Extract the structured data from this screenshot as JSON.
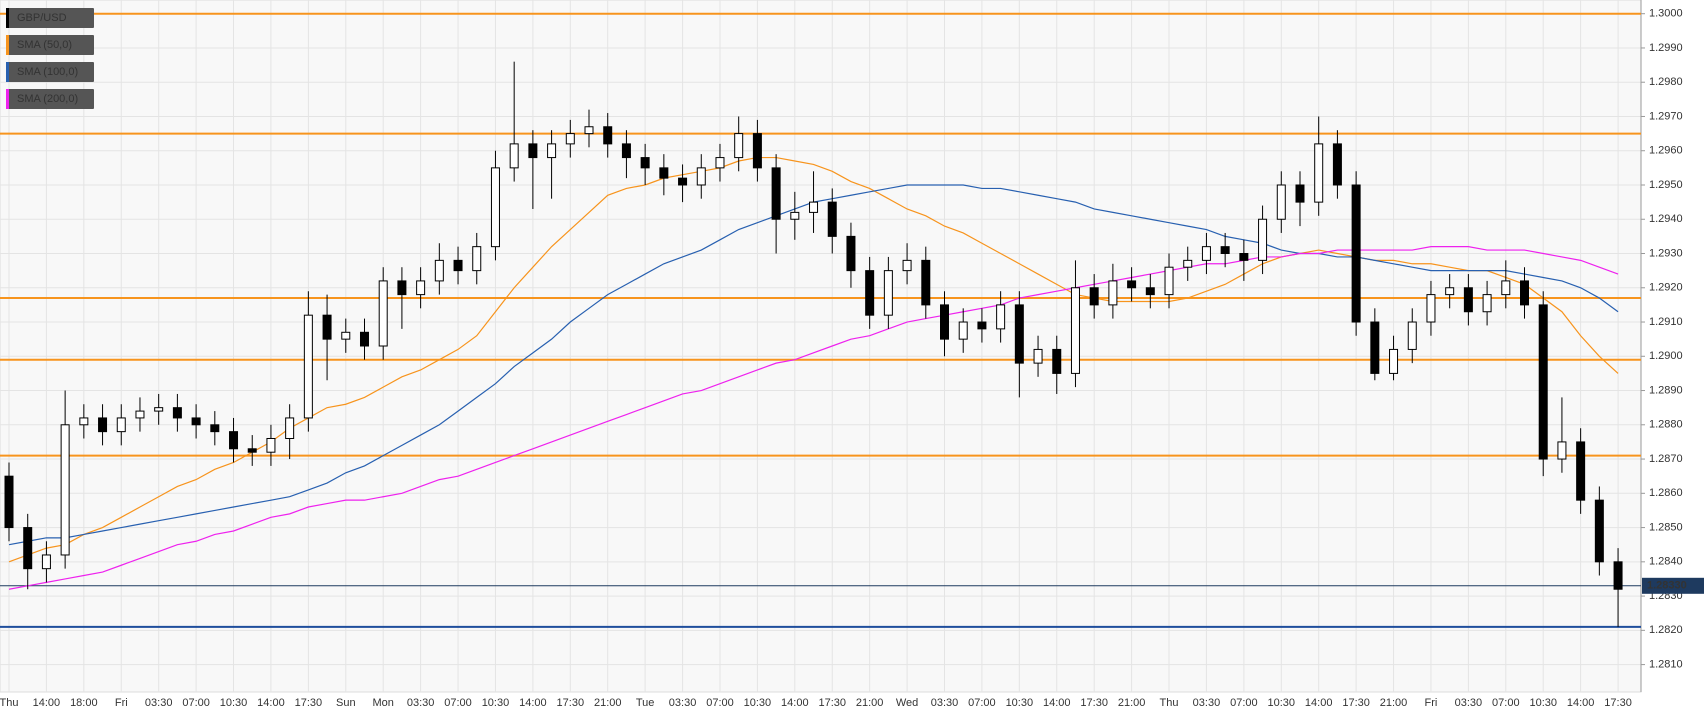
{
  "chart_data": {
    "type": "candlestick",
    "symbol": "GBP/USD",
    "categories": [
      "Thu",
      null,
      "14:00",
      null,
      "18:00",
      null,
      "Fri",
      null,
      "03:30",
      null,
      "07:00",
      null,
      "10:30",
      null,
      "14:00",
      null,
      "17:30",
      null,
      "Sun",
      null,
      "Mon",
      null,
      "03:30",
      null,
      "07:00",
      null,
      "10:30",
      null,
      "14:00",
      null,
      "17:30",
      null,
      "21:00",
      null,
      "Tue",
      null,
      "03:30",
      null,
      "07:00",
      null,
      "10:30",
      null,
      "14:00",
      null,
      "17:30",
      null,
      "21:00",
      null,
      "Wed",
      null,
      "03:30",
      null,
      "07:00",
      null,
      "10:30",
      null,
      "14:00",
      null,
      "17:30",
      null,
      "21:00",
      null,
      "Thu",
      null,
      "03:30",
      null,
      "07:00",
      null,
      "10:30",
      null,
      "14:00",
      null,
      "17:30",
      null,
      "21:00",
      null,
      "Fri",
      null,
      "03:30",
      null,
      "07:00",
      null,
      "10:30",
      null,
      "14:00",
      null,
      "17:30"
    ],
    "open": [
      1.2865,
      1.285,
      1.2838,
      1.2842,
      1.288,
      1.2882,
      1.2878,
      1.2882,
      1.2884,
      1.2885,
      1.2882,
      1.288,
      1.2878,
      1.2873,
      1.2872,
      1.2876,
      1.2882,
      1.2912,
      1.2905,
      1.2907,
      1.2903,
      1.2922,
      1.2918,
      1.2922,
      1.2928,
      1.2925,
      1.2932,
      1.2955,
      1.2962,
      1.2958,
      1.2962,
      1.2965,
      1.2967,
      1.2962,
      1.2958,
      1.2955,
      1.2952,
      1.295,
      1.2955,
      1.2958,
      1.2965,
      1.2955,
      1.294,
      1.2942,
      1.2945,
      1.2935,
      1.2925,
      1.2912,
      1.2925,
      1.2928,
      1.2915,
      1.2905,
      1.291,
      1.2908,
      1.2915,
      1.2898,
      1.2902,
      1.2895,
      1.292,
      1.2915,
      1.2922,
      1.292,
      1.2918,
      1.2926,
      1.2928,
      1.2932,
      1.293,
      1.2928,
      1.294,
      1.295,
      1.2945,
      1.2962,
      1.295,
      1.291,
      1.2895,
      1.2902,
      1.291,
      1.2918,
      1.292,
      1.2913,
      1.2918,
      1.2922,
      1.2915,
      1.287,
      1.2875,
      1.2858,
      1.284
    ],
    "high": [
      1.2869,
      1.2854,
      1.2846,
      1.289,
      1.2886,
      1.2886,
      1.2886,
      1.2888,
      1.2889,
      1.2889,
      1.2886,
      1.2884,
      1.2882,
      1.2877,
      1.288,
      1.2886,
      1.2919,
      1.2918,
      1.2911,
      1.2911,
      1.2926,
      1.2926,
      1.2926,
      1.2933,
      1.2932,
      1.2936,
      1.296,
      1.2986,
      1.2966,
      1.2966,
      1.2969,
      1.2972,
      1.2971,
      1.2966,
      1.2962,
      1.2959,
      1.2956,
      1.2959,
      1.2962,
      1.297,
      1.2969,
      1.2959,
      1.2948,
      1.2954,
      1.2949,
      1.2939,
      1.2929,
      1.2929,
      1.2933,
      1.2932,
      1.2919,
      1.2914,
      1.2914,
      1.2919,
      1.2919,
      1.2906,
      1.2906,
      1.2928,
      1.2924,
      1.2927,
      1.2926,
      1.2924,
      1.293,
      1.2932,
      1.2936,
      1.2936,
      1.2934,
      1.2944,
      1.2954,
      1.2954,
      1.297,
      1.2966,
      1.2954,
      1.2914,
      1.2906,
      1.2914,
      1.2922,
      1.2924,
      1.2924,
      1.2922,
      1.2928,
      1.2926,
      1.2919,
      1.2888,
      1.2879,
      1.2862,
      1.2844
    ],
    "low": [
      1.2846,
      1.2832,
      1.2834,
      1.2838,
      1.2876,
      1.2874,
      1.2874,
      1.2878,
      1.288,
      1.2878,
      1.2876,
      1.2874,
      1.2869,
      1.2868,
      1.2868,
      1.287,
      1.2878,
      1.2893,
      1.2901,
      1.2899,
      1.2899,
      1.2908,
      1.2914,
      1.2918,
      1.2921,
      1.2921,
      1.2928,
      1.2951,
      1.2943,
      1.2946,
      1.2958,
      1.2961,
      1.2958,
      1.2952,
      1.295,
      1.2947,
      1.2945,
      1.2946,
      1.2951,
      1.2954,
      1.2951,
      1.293,
      1.2934,
      1.2936,
      1.293,
      1.292,
      1.2908,
      1.2908,
      1.2921,
      1.2911,
      1.29,
      1.2901,
      1.2904,
      1.2904,
      1.2888,
      1.2894,
      1.2889,
      1.2891,
      1.2911,
      1.2911,
      1.2916,
      1.2914,
      1.2914,
      1.2922,
      1.2924,
      1.2926,
      1.2922,
      1.2924,
      1.2936,
      1.2938,
      1.2941,
      1.2946,
      1.2906,
      1.2893,
      1.2893,
      1.2898,
      1.2906,
      1.2914,
      1.2909,
      1.2909,
      1.2914,
      1.2911,
      1.2865,
      1.2866,
      1.2854,
      1.2836,
      1.2821
    ],
    "close": [
      1.285,
      1.2838,
      1.2842,
      1.288,
      1.2882,
      1.2878,
      1.2882,
      1.2884,
      1.2885,
      1.2882,
      1.288,
      1.2878,
      1.2873,
      1.2872,
      1.2876,
      1.2882,
      1.2912,
      1.2905,
      1.2907,
      1.2903,
      1.2922,
      1.2918,
      1.2922,
      1.2928,
      1.2925,
      1.2932,
      1.2955,
      1.2962,
      1.2958,
      1.2962,
      1.2965,
      1.2967,
      1.2962,
      1.2958,
      1.2955,
      1.2952,
      1.295,
      1.2955,
      1.2958,
      1.2965,
      1.2955,
      1.294,
      1.2942,
      1.2945,
      1.2935,
      1.2925,
      1.2912,
      1.2925,
      1.2928,
      1.2915,
      1.2905,
      1.291,
      1.2908,
      1.2915,
      1.2898,
      1.2902,
      1.2895,
      1.292,
      1.2915,
      1.2922,
      1.292,
      1.2918,
      1.2926,
      1.2928,
      1.2932,
      1.293,
      1.2928,
      1.294,
      1.295,
      1.2945,
      1.2962,
      1.295,
      1.291,
      1.2895,
      1.2902,
      1.291,
      1.2918,
      1.292,
      1.2913,
      1.2918,
      1.2922,
      1.2915,
      1.287,
      1.2875,
      1.2858,
      1.284,
      1.2832
    ],
    "series": [
      {
        "name": "SMA (50,0)",
        "color": "#f7941d",
        "values": [
          1.284,
          1.2842,
          1.2844,
          1.2845,
          1.2848,
          1.285,
          1.2853,
          1.2856,
          1.2859,
          1.2862,
          1.2864,
          1.2867,
          1.2869,
          1.2872,
          1.2875,
          1.2879,
          1.2882,
          1.2885,
          1.2886,
          1.2888,
          1.2891,
          1.2894,
          1.2896,
          1.2899,
          1.2902,
          1.2906,
          1.2913,
          1.292,
          1.2926,
          1.2932,
          1.2937,
          1.2942,
          1.2947,
          1.2949,
          1.295,
          1.2952,
          1.2953,
          1.2954,
          1.2955,
          1.2957,
          1.2958,
          1.2958,
          1.2957,
          1.2956,
          1.2954,
          1.2951,
          1.2949,
          1.2946,
          1.2943,
          1.2941,
          1.2938,
          1.2936,
          1.2933,
          1.293,
          1.2927,
          1.2924,
          1.2921,
          1.2918,
          1.2917,
          1.2916,
          1.2916,
          1.2916,
          1.2916,
          1.2917,
          1.2919,
          1.2921,
          1.2924,
          1.2927,
          1.2929,
          1.293,
          1.2931,
          1.293,
          1.2929,
          1.2928,
          1.2928,
          1.2927,
          1.2927,
          1.2926,
          1.2925,
          1.2925,
          1.2923,
          1.2921,
          1.2917,
          1.2913,
          1.2906,
          1.29,
          1.2895
        ]
      },
      {
        "name": "SMA (100,0)",
        "color": "#2860b0",
        "values": [
          1.2845,
          1.2846,
          1.2847,
          1.2847,
          1.2848,
          1.2849,
          1.285,
          1.2851,
          1.2852,
          1.2853,
          1.2854,
          1.2855,
          1.2856,
          1.2857,
          1.2858,
          1.2859,
          1.2861,
          1.2863,
          1.2866,
          1.2868,
          1.2871,
          1.2874,
          1.2877,
          1.288,
          1.2884,
          1.2888,
          1.2892,
          1.2897,
          1.2901,
          1.2905,
          1.291,
          1.2914,
          1.2918,
          1.2921,
          1.2924,
          1.2927,
          1.2929,
          1.2931,
          1.2934,
          1.2937,
          1.2939,
          1.2941,
          1.2943,
          1.2945,
          1.2946,
          1.2947,
          1.2948,
          1.2949,
          1.295,
          1.295,
          1.295,
          1.295,
          1.2949,
          1.2949,
          1.2948,
          1.2947,
          1.2946,
          1.2945,
          1.2943,
          1.2942,
          1.2941,
          1.294,
          1.2939,
          1.2938,
          1.2937,
          1.2935,
          1.2934,
          1.2933,
          1.2931,
          1.293,
          1.293,
          1.2929,
          1.2929,
          1.2928,
          1.2927,
          1.2926,
          1.2925,
          1.2925,
          1.2925,
          1.2925,
          1.2925,
          1.2924,
          1.2923,
          1.2922,
          1.292,
          1.2917,
          1.2913
        ]
      },
      {
        "name": "SMA (200,0)",
        "color": "#ee22ee",
        "values": [
          1.2832,
          1.2833,
          1.2834,
          1.2835,
          1.2836,
          1.2837,
          1.2839,
          1.2841,
          1.2843,
          1.2845,
          1.2846,
          1.2848,
          1.2849,
          1.2851,
          1.2853,
          1.2854,
          1.2856,
          1.2857,
          1.2858,
          1.2858,
          1.2859,
          1.286,
          1.2862,
          1.2864,
          1.2865,
          1.2867,
          1.2869,
          1.2871,
          1.2873,
          1.2875,
          1.2877,
          1.2879,
          1.2881,
          1.2883,
          1.2885,
          1.2887,
          1.2889,
          1.289,
          1.2892,
          1.2894,
          1.2896,
          1.2898,
          1.2899,
          1.2901,
          1.2903,
          1.2905,
          1.2906,
          1.2908,
          1.291,
          1.2911,
          1.2912,
          1.2913,
          1.2914,
          1.2915,
          1.2917,
          1.2918,
          1.2919,
          1.292,
          1.2921,
          1.2922,
          1.2923,
          1.2924,
          1.2925,
          1.2926,
          1.2927,
          1.2927,
          1.2928,
          1.2929,
          1.2929,
          1.293,
          1.293,
          1.2931,
          1.2931,
          1.2931,
          1.2931,
          1.2931,
          1.2932,
          1.2932,
          1.2932,
          1.2931,
          1.2931,
          1.2931,
          1.293,
          1.2929,
          1.2928,
          1.2926,
          1.2924
        ]
      }
    ],
    "up_color": "#ffffff",
    "down_color": "#000000",
    "levels": [
      {
        "value": 1.3,
        "color": "#f7941d"
      },
      {
        "value": 1.2965,
        "color": "#f7941d"
      },
      {
        "value": 1.2917,
        "color": "#f7941d"
      },
      {
        "value": 1.2899,
        "color": "#f7941d"
      },
      {
        "value": 1.2871,
        "color": "#f7941d"
      },
      {
        "value": 1.2821,
        "color": "#1f4e9c"
      }
    ],
    "last_price": 1.2833,
    "last_price_label": "1.28330",
    "ylim": [
      1.2802,
      1.3004
    ],
    "yticks": [
      {
        "value": 1.281,
        "label": "1.2810"
      },
      {
        "value": 1.282,
        "label": "1.2820"
      },
      {
        "value": 1.283,
        "label": "1.2830"
      },
      {
        "value": 1.284,
        "label": "1.2840"
      },
      {
        "value": 1.285,
        "label": "1.2850"
      },
      {
        "value": 1.286,
        "label": "1.2860"
      },
      {
        "value": 1.287,
        "label": "1.2870"
      },
      {
        "value": 1.288,
        "label": "1.2880"
      },
      {
        "value": 1.289,
        "label": "1.2890"
      },
      {
        "value": 1.29,
        "label": "1.2900"
      },
      {
        "value": 1.291,
        "label": "1.2910"
      },
      {
        "value": 1.292,
        "label": "1.2920"
      },
      {
        "value": 1.293,
        "label": "1.2930"
      },
      {
        "value": 1.294,
        "label": "1.2940"
      },
      {
        "value": 1.295,
        "label": "1.2950"
      },
      {
        "value": 1.296,
        "label": "1.2960"
      },
      {
        "value": 1.297,
        "label": "1.2970"
      },
      {
        "value": 1.298,
        "label": "1.2980"
      },
      {
        "value": 1.299,
        "label": "1.2990"
      },
      {
        "value": 1.3,
        "label": "1.3000"
      }
    ],
    "grid": true
  }
}
